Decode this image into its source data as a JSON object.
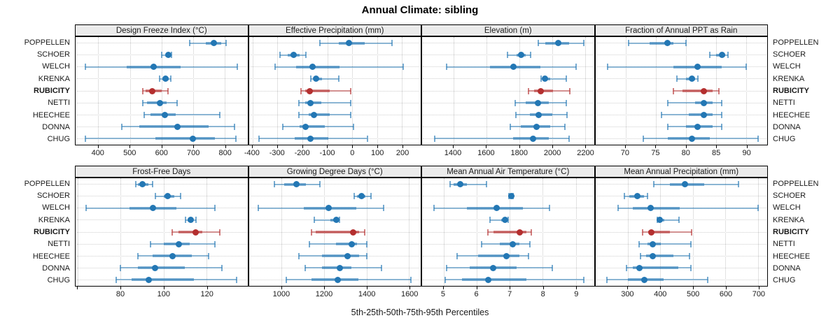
{
  "title": "Annual Climate: sibling",
  "caption": "5th-25th-50th-75th-95th Percentiles",
  "colors": {
    "series": "#2377b4",
    "highlight": "#b42f2f",
    "header_bg": "#ebebeb",
    "grid": "#c9c9c9",
    "border": "#000000"
  },
  "chart_data": {
    "type": "dotplot-interval",
    "percentile_levels": [
      5,
      25,
      50,
      75,
      95
    ],
    "sites": [
      "POPPELLEN",
      "SCHOER",
      "WELCH",
      "KRENKA",
      "RUBICITY",
      "NETTI",
      "HEECHEE",
      "DONNA",
      "CHUG"
    ],
    "highlight_site": "RUBICITY",
    "legend": "none",
    "grid": "dotted",
    "panels": [
      {
        "title": "Design Freeze Index (°C)",
        "xlim": [
          328,
          872
        ],
        "ticks": [
          {
            "v": 400,
            "l": "400"
          },
          {
            "v": 500,
            "l": "500"
          },
          {
            "v": 600,
            "l": "600"
          },
          {
            "v": 700,
            "l": "700"
          },
          {
            "v": 800,
            "l": "800"
          }
        ],
        "series": [
          [
            690,
            740,
            765,
            790,
            805
          ],
          [
            600,
            612,
            621,
            628,
            632
          ],
          [
            360,
            490,
            575,
            660,
            840
          ],
          [
            595,
            603,
            612,
            622,
            629
          ],
          [
            540,
            550,
            570,
            600,
            620
          ],
          [
            540,
            555,
            595,
            615,
            650
          ],
          [
            545,
            565,
            610,
            645,
            785
          ],
          [
            475,
            530,
            650,
            750,
            830
          ],
          [
            360,
            580,
            700,
            770,
            835
          ]
        ]
      },
      {
        "title": "Effective Precipitation (mm)",
        "xlim": [
          -415,
          275
        ],
        "ticks": [
          {
            "v": -400,
            "l": "-400"
          },
          {
            "v": -300,
            "l": "-300"
          },
          {
            "v": -200,
            "l": "-200"
          },
          {
            "v": -100,
            "l": "-100"
          },
          {
            "v": 0,
            "l": "0"
          },
          {
            "v": 100,
            "l": "100"
          },
          {
            "v": 200,
            "l": "200"
          }
        ],
        "series": [
          [
            -130,
            -55,
            -12,
            50,
            160
          ],
          [
            -290,
            -260,
            -235,
            -212,
            -185
          ],
          [
            -310,
            -225,
            -160,
            -50,
            205
          ],
          [
            -165,
            -155,
            -145,
            -120,
            -55
          ],
          [
            -205,
            -190,
            -170,
            -90,
            -5
          ],
          [
            -215,
            -190,
            -168,
            -125,
            -5
          ],
          [
            -215,
            -175,
            -155,
            -90,
            -5
          ],
          [
            -278,
            -210,
            -188,
            -110,
            5
          ],
          [
            -375,
            -230,
            -168,
            -95,
            60
          ]
        ]
      },
      {
        "title": "Elevation (m)",
        "xlim": [
          1210,
          2255
        ],
        "ticks": [
          {
            "v": 1400,
            "l": "1400"
          },
          {
            "v": 1600,
            "l": "1600"
          },
          {
            "v": 1800,
            "l": "1800"
          },
          {
            "v": 2000,
            "l": "2000"
          },
          {
            "v": 2200,
            "l": "2200"
          }
        ],
        "series": [
          [
            1915,
            1960,
            2040,
            2105,
            2195
          ],
          [
            1730,
            1785,
            1812,
            1842,
            1870
          ],
          [
            1360,
            1625,
            1765,
            1930,
            2145
          ],
          [
            1935,
            1945,
            1957,
            1990,
            2085
          ],
          [
            1855,
            1890,
            1930,
            2005,
            2110
          ],
          [
            1775,
            1840,
            1915,
            1980,
            2085
          ],
          [
            1780,
            1865,
            1920,
            2000,
            2090
          ],
          [
            1745,
            1810,
            1905,
            1990,
            2080
          ],
          [
            1285,
            1765,
            1885,
            1980,
            2105
          ]
        ]
      },
      {
        "title": "Fraction of Annual PPT as Rain",
        "xlim": [
          65,
          93.5
        ],
        "ticks": [
          {
            "v": 70,
            "l": "70"
          },
          {
            "v": 75,
            "l": "75"
          },
          {
            "v": 80,
            "l": "80"
          },
          {
            "v": 85,
            "l": "85"
          },
          {
            "v": 90,
            "l": "90"
          }
        ],
        "series": [
          [
            70.5,
            74,
            77,
            78,
            80
          ],
          [
            84,
            85,
            86,
            86.5,
            87
          ],
          [
            67,
            78,
            82,
            86,
            90
          ],
          [
            78.5,
            80,
            81,
            81.5,
            82
          ],
          [
            78,
            79.5,
            83,
            84.5,
            85.5
          ],
          [
            77,
            81.5,
            83,
            84.5,
            86
          ],
          [
            76,
            80.5,
            83,
            84.5,
            86
          ],
          [
            77,
            80,
            82,
            84.5,
            86
          ],
          [
            73,
            77,
            81,
            84,
            92
          ]
        ]
      },
      {
        "title": "Frost-Free Days",
        "xlim": [
          59,
          139
        ],
        "ticks": [
          {
            "v": 60,
            "l": ""
          },
          {
            "v": 80,
            "l": "80"
          },
          {
            "v": 100,
            "l": "100"
          },
          {
            "v": 120,
            "l": "120"
          }
        ],
        "series": [
          [
            87,
            88,
            90,
            93,
            95
          ],
          [
            96,
            100,
            102,
            105,
            108
          ],
          [
            64,
            84,
            95,
            106,
            124
          ],
          [
            110,
            111,
            112.5,
            113.5,
            115
          ],
          [
            104,
            107,
            115,
            118,
            126
          ],
          [
            94,
            100,
            107,
            112,
            124
          ],
          [
            88,
            95,
            104,
            113,
            121
          ],
          [
            80,
            88,
            96,
            110,
            127
          ],
          [
            78,
            85,
            93,
            114,
            134
          ]
        ]
      },
      {
        "title": "Growing Degree Days (°C)",
        "xlim": [
          845,
          1655
        ],
        "ticks": [
          {
            "v": 1000,
            "l": "1000"
          },
          {
            "v": 1200,
            "l": "1200"
          },
          {
            "v": 1400,
            "l": "1400"
          },
          {
            "v": 1600,
            "l": "1600"
          }
        ],
        "series": [
          [
            965,
            1010,
            1070,
            1115,
            1180
          ],
          [
            1340,
            1355,
            1375,
            1395,
            1420
          ],
          [
            890,
            1105,
            1220,
            1350,
            1480
          ],
          [
            1155,
            1230,
            1258,
            1266,
            1272
          ],
          [
            1140,
            1160,
            1335,
            1365,
            1390
          ],
          [
            1130,
            1255,
            1330,
            1355,
            1400
          ],
          [
            1080,
            1190,
            1310,
            1365,
            1400
          ],
          [
            1110,
            1190,
            1275,
            1330,
            1470
          ],
          [
            1020,
            1140,
            1265,
            1360,
            1610
          ]
        ]
      },
      {
        "title": "Mean Annual Air Temperature (°C)",
        "xlim": [
          4.35,
          9.55
        ],
        "ticks": [
          {
            "v": 5,
            "l": "5"
          },
          {
            "v": 6,
            "l": "6"
          },
          {
            "v": 7,
            "l": "7"
          },
          {
            "v": 8,
            "l": "8"
          },
          {
            "v": 9,
            "l": "9"
          }
        ],
        "series": [
          [
            5.2,
            5.3,
            5.5,
            5.7,
            6.3
          ],
          [
            6.98,
            7.01,
            7.05,
            7.08,
            7.11
          ],
          [
            4.7,
            5.7,
            6.6,
            7.4,
            8.2
          ],
          [
            6.4,
            6.75,
            6.85,
            6.9,
            6.95
          ],
          [
            6.35,
            6.5,
            7.3,
            7.5,
            7.65
          ],
          [
            6.15,
            6.7,
            7.1,
            7.3,
            7.62
          ],
          [
            5.4,
            6.05,
            6.9,
            7.3,
            7.57
          ],
          [
            5.1,
            5.8,
            6.5,
            7.2,
            8.3
          ],
          [
            5.05,
            5.55,
            6.35,
            7.5,
            9.25
          ]
        ]
      },
      {
        "title": "Mean Annual Precipitation (mm)",
        "xlim": [
          200,
          728
        ],
        "ticks": [
          {
            "v": 300,
            "l": "300"
          },
          {
            "v": 400,
            "l": "400"
          },
          {
            "v": 500,
            "l": "500"
          },
          {
            "v": 600,
            "l": "600"
          },
          {
            "v": 700,
            "l": "700"
          }
        ],
        "series": [
          [
            380,
            430,
            475,
            535,
            640
          ],
          [
            290,
            305,
            330,
            350,
            360
          ],
          [
            270,
            315,
            370,
            460,
            700
          ],
          [
            390,
            393,
            397,
            412,
            458
          ],
          [
            345,
            362,
            372,
            430,
            495
          ],
          [
            335,
            360,
            377,
            402,
            493
          ],
          [
            338,
            356,
            377,
            440,
            490
          ],
          [
            295,
            315,
            335,
            455,
            493
          ],
          [
            235,
            300,
            350,
            410,
            545
          ]
        ]
      }
    ]
  }
}
